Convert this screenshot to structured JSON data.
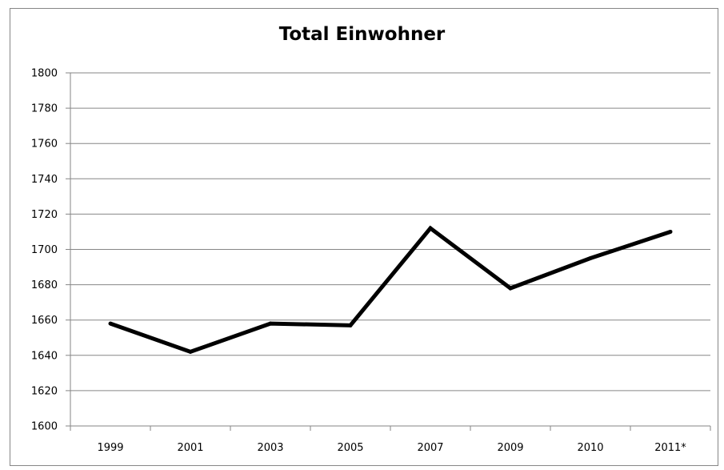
{
  "chart_data": {
    "type": "line",
    "title": "Total Einwohner",
    "xlabel": "",
    "ylabel": "",
    "categories": [
      "1999",
      "2001",
      "2003",
      "2005",
      "2007",
      "2009",
      "2010",
      "2011*"
    ],
    "series": [
      {
        "values": [
          1658,
          1642,
          1658,
          1657,
          1712,
          1678,
          1695,
          1710
        ]
      }
    ],
    "ylim": [
      1600,
      1800
    ],
    "yticks": [
      "1600",
      "1620",
      "1640",
      "1660",
      "1680",
      "1700",
      "1720",
      "1740",
      "1760",
      "1780",
      "1800"
    ],
    "grid": "horizontal",
    "legend": "none",
    "line_color": "#000000"
  }
}
